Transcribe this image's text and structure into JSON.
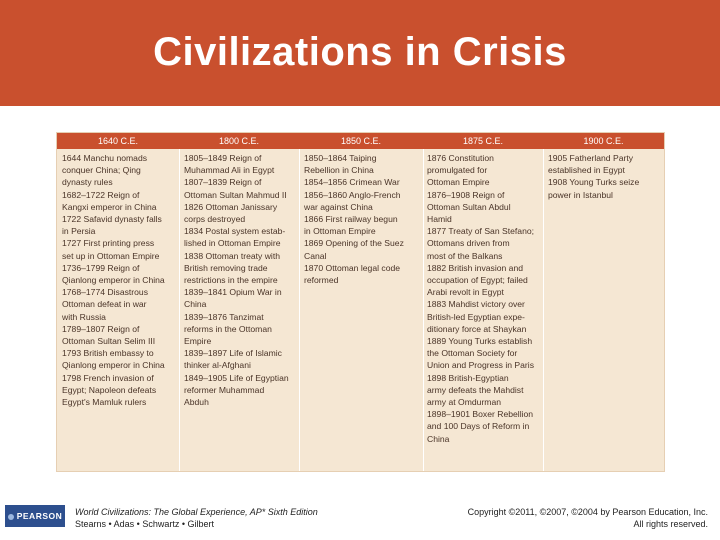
{
  "title": "Civilizations in Crisis",
  "table": {
    "headers": [
      "1640 C.E.",
      "1800 C.E.",
      "1850 C.E.",
      "1875 C.E.",
      "1900 C.E."
    ],
    "columns": [
      "1644 Manchu nomads\nconquer China; Qing\ndynasty rules\n1682–1722 Reign of\nKangxi emperor in China\n1722 Safavid dynasty falls\nin Persia\n1727 First printing press\nset up in Ottoman Empire\n1736–1799 Reign of\nQianlong emperor in China\n1768–1774 Disastrous\nOttoman defeat in war\nwith Russia\n1789–1807 Reign of\nOttoman Sultan Selim III\n1793 British embassy to\nQianlong emperor in China\n1798 French invasion of\nEgypt; Napoleon defeats\nEgypt's Mamluk rulers",
      "1805–1849 Reign of\nMuhammad Ali in Egypt\n1807–1839 Reign of\nOttoman Sultan Mahmud II\n1826 Ottoman Janissary\ncorps destroyed\n1834 Postal system estab-\nlished in Ottoman Empire\n1838 Ottoman treaty with\nBritish removing trade\nrestrictions in the empire\n1839–1841 Opium War in\nChina\n1839–1876 Tanzimat\nreforms in the Ottoman\nEmpire\n1839–1897 Life of Islamic\nthinker al-Afghani\n1849–1905 Life of Egyptian\nreformer Muhammad\nAbduh",
      "1850–1864 Taiping\nRebellion in China\n1854–1856 Crimean War\n1856–1860 Anglo-French\nwar against China\n1866 First railway begun\nin Ottoman Empire\n1869 Opening of the Suez\nCanal\n1870 Ottoman legal code\nreformed",
      "1876 Constitution\npromulgated for\nOttoman Empire\n1876–1908 Reign of\nOttoman Sultan Abdul\nHamid\n1877 Treaty of San Stefano;\nOttomans driven from\nmost of the Balkans\n1882 British invasion and\noccupation of Egypt; failed\nArabi revolt in Egypt\n1883 Mahdist victory over\nBritish-led Egyptian expe-\nditionary force at Shaykan\n1889 Young Turks establish\nthe Ottoman Society for\nUnion and Progress in Paris\n1898 British-Egyptian\narmy defeats the Mahdist\narmy at Omdurman\n1898–1901 Boxer Rebellion\nand 100 Days of Reform in\nChina",
      "1905 Fatherland Party\nestablished in Egypt\n1908 Young Turks seize\npower in Istanbul"
    ]
  },
  "footer": {
    "logo": "PEARSON",
    "book_title": "World Civilizations: The Global Experience, AP* Sixth Edition",
    "authors": "Stearns • Adas • Schwartz • Gilbert",
    "copyright": "Copyright ©2011, ©2007, ©2004 by Pearson Education, Inc.",
    "rights": "All rights reserved."
  },
  "colors": {
    "header": "#c9502e",
    "table_background": "#f5e7d3",
    "logo_background": "#2d4f8e"
  }
}
